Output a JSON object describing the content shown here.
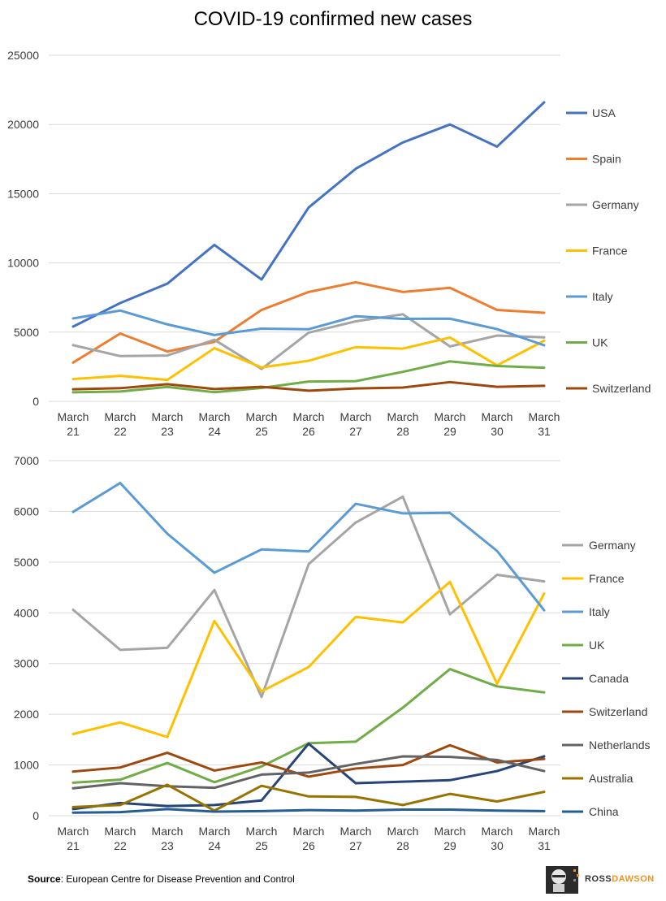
{
  "title": "COVID-19 confirmed new cases",
  "source": {
    "label": "Source",
    "text": ": European Centre for Disease Prevention and Control"
  },
  "brand": {
    "part1": "ROSS",
    "part2": "DAWSON"
  },
  "chart_data": [
    {
      "type": "line",
      "title": "COVID-19 confirmed new cases",
      "categories": [
        [
          "March",
          "21"
        ],
        [
          "March",
          "22"
        ],
        [
          "March",
          "23"
        ],
        [
          "March",
          "24"
        ],
        [
          "March",
          "25"
        ],
        [
          "March",
          "26"
        ],
        [
          "March",
          "27"
        ],
        [
          "March",
          "28"
        ],
        [
          "March",
          "29"
        ],
        [
          "March",
          "30"
        ],
        [
          "March",
          "31"
        ]
      ],
      "ylim": [
        0,
        25000
      ],
      "yticks": [
        0,
        5000,
        10000,
        15000,
        20000,
        25000
      ],
      "grid": true,
      "legend": "right",
      "series": [
        {
          "name": "USA",
          "color": "#4472c4",
          "values": [
            5400,
            7100,
            8500,
            11300,
            8800,
            14000,
            16800,
            18700,
            20000,
            18400,
            21600
          ]
        },
        {
          "name": "Spain",
          "color": "#ed7d31",
          "values": [
            2800,
            4900,
            3600,
            4300,
            6600,
            7900,
            8600,
            7900,
            8200,
            6600,
            6400
          ]
        },
        {
          "name": "Germany",
          "color": "#a5a5a5",
          "values": [
            4060,
            3270,
            3310,
            4450,
            2340,
            4960,
            5780,
            6290,
            3970,
            4750,
            4620
          ]
        },
        {
          "name": "France",
          "color": "#ffc000",
          "values": [
            1610,
            1840,
            1550,
            3840,
            2450,
            2930,
            3920,
            3810,
            4610,
            2600,
            4380
          ]
        },
        {
          "name": "Italy",
          "color": "#5b9bd5",
          "values": [
            5990,
            6560,
            5560,
            4790,
            5250,
            5210,
            6150,
            5960,
            5970,
            5220,
            4050
          ]
        },
        {
          "name": "UK",
          "color": "#70ad47",
          "values": [
            650,
            710,
            1040,
            660,
            970,
            1430,
            1460,
            2130,
            2890,
            2550,
            2430
          ]
        },
        {
          "name": "Switzerland",
          "color": "#9e480e",
          "values": [
            870,
            950,
            1240,
            890,
            1050,
            770,
            930,
            1000,
            1390,
            1050,
            1120
          ]
        }
      ]
    },
    {
      "type": "line",
      "categories": [
        [
          "March",
          "21"
        ],
        [
          "March",
          "22"
        ],
        [
          "March",
          "23"
        ],
        [
          "March",
          "24"
        ],
        [
          "March",
          "25"
        ],
        [
          "March",
          "26"
        ],
        [
          "March",
          "27"
        ],
        [
          "March",
          "28"
        ],
        [
          "March",
          "29"
        ],
        [
          "March",
          "30"
        ],
        [
          "March",
          "31"
        ]
      ],
      "ylim": [
        0,
        7000
      ],
      "yticks": [
        0,
        1000,
        2000,
        3000,
        4000,
        5000,
        6000,
        7000
      ],
      "grid": true,
      "legend": "right",
      "series": [
        {
          "name": "Germany",
          "color": "#a5a5a5",
          "values": [
            4060,
            3270,
            3310,
            4450,
            2340,
            4960,
            5780,
            6290,
            3970,
            4750,
            4620
          ]
        },
        {
          "name": "France",
          "color": "#ffc000",
          "values": [
            1610,
            1840,
            1550,
            3840,
            2450,
            2930,
            3920,
            3810,
            4610,
            2600,
            4380
          ]
        },
        {
          "name": "Italy",
          "color": "#5b9bd5",
          "values": [
            5990,
            6560,
            5560,
            4790,
            5250,
            5210,
            6150,
            5960,
            5970,
            5220,
            4050
          ]
        },
        {
          "name": "UK",
          "color": "#70ad47",
          "values": [
            650,
            710,
            1040,
            660,
            970,
            1430,
            1460,
            2130,
            2890,
            2550,
            2430
          ]
        },
        {
          "name": "Canada",
          "color": "#264478",
          "values": [
            130,
            250,
            190,
            210,
            300,
            1420,
            640,
            670,
            700,
            880,
            1170
          ]
        },
        {
          "name": "Switzerland",
          "color": "#9e480e",
          "values": [
            870,
            950,
            1240,
            890,
            1050,
            770,
            930,
            1000,
            1390,
            1050,
            1120
          ]
        },
        {
          "name": "Netherlands",
          "color": "#636363",
          "values": [
            540,
            640,
            580,
            550,
            810,
            850,
            1020,
            1170,
            1160,
            1100,
            880
          ]
        },
        {
          "name": "Australia",
          "color": "#997300",
          "values": [
            170,
            210,
            610,
            100,
            590,
            380,
            370,
            210,
            430,
            280,
            470
          ]
        },
        {
          "name": "China",
          "color": "#255e91",
          "values": [
            60,
            70,
            130,
            80,
            90,
            110,
            100,
            120,
            120,
            100,
            90
          ]
        }
      ]
    }
  ]
}
